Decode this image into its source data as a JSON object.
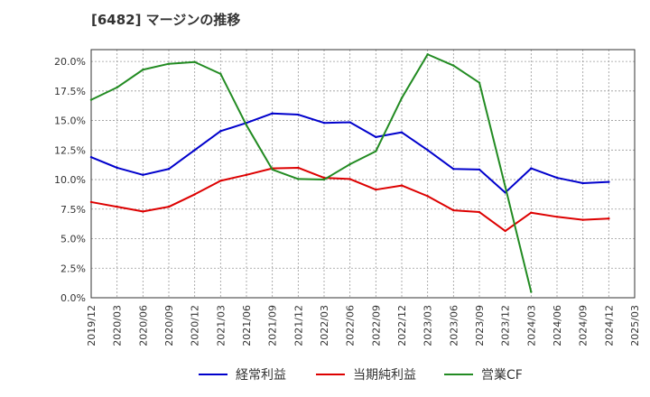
{
  "title": "[6482]  マージンの推移",
  "chart_data": {
    "type": "line",
    "x": [
      "2019/12",
      "2020/03",
      "2020/06",
      "2020/09",
      "2020/12",
      "2021/03",
      "2021/06",
      "2021/09",
      "2021/12",
      "2022/03",
      "2022/06",
      "2022/09",
      "2022/12",
      "2023/03",
      "2023/06",
      "2023/09",
      "2023/12",
      "2024/03",
      "2024/06",
      "2024/09",
      "2024/12",
      "2025/03"
    ],
    "y_ticks": [
      "0.0%",
      "2.5%",
      "5.0%",
      "7.5%",
      "10.0%",
      "12.5%",
      "15.0%",
      "17.5%",
      "20.0%"
    ],
    "ylim": [
      0,
      21
    ],
    "grid": true,
    "legend_position": "bottom",
    "series": [
      {
        "name": "経常利益",
        "color": "#0000cc",
        "values": [
          11.9,
          11.0,
          10.4,
          10.9,
          12.5,
          14.1,
          14.8,
          15.6,
          15.5,
          14.8,
          14.85,
          13.6,
          14.0,
          12.5,
          10.9,
          10.85,
          8.9,
          10.95,
          10.15,
          9.7,
          9.8,
          null
        ]
      },
      {
        "name": "当期純利益",
        "color": "#dd0000",
        "values": [
          8.1,
          7.7,
          7.3,
          7.7,
          8.75,
          9.9,
          10.4,
          10.95,
          11.0,
          10.15,
          10.05,
          9.15,
          9.5,
          8.6,
          7.4,
          7.25,
          5.65,
          7.2,
          6.85,
          6.6,
          6.7,
          null
        ]
      },
      {
        "name": "営業CF",
        "color": "#228b22",
        "values": [
          16.75,
          17.8,
          19.3,
          19.8,
          19.95,
          18.95,
          14.6,
          10.85,
          10.05,
          10.0,
          11.3,
          12.4,
          16.9,
          20.6,
          19.65,
          18.2,
          9.4,
          0.5,
          null,
          null,
          null,
          null
        ]
      }
    ]
  }
}
